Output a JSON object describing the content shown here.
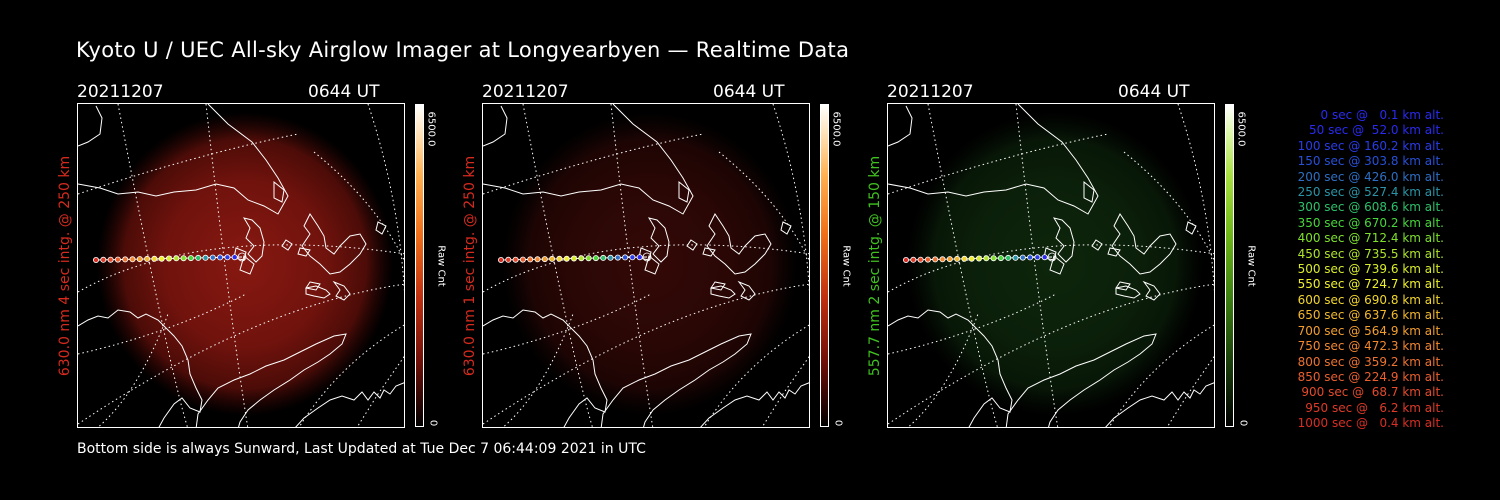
{
  "page": {
    "title": "Kyoto U / UEC All-sky Airglow Imager at Longyearbyen — Realtime Data",
    "footer": "Bottom side is always Sunward, Last Updated at Tue Dec  7 06:44:09 2021 in UTC"
  },
  "panels": [
    {
      "date": "20211207",
      "time": "0644 UT",
      "ylabel": "630.0 nm 4 sec intg. @ 250 km",
      "cbar_max": "6500.0",
      "cbar_min": "0",
      "cbar_unit": "Raw Cnt",
      "color": "#d62a1e"
    },
    {
      "date": "20211207",
      "time": "0644 UT",
      "ylabel": "630.0 nm 1 sec intg. @ 250 km",
      "cbar_max": "6500.0",
      "cbar_min": "0",
      "cbar_unit": "Raw Cnt",
      "color": "#d62a1e"
    },
    {
      "date": "20211207",
      "time": "0644 UT",
      "ylabel": "557.7 nm 2 sec intg. @ 150 km",
      "cbar_max": "6500.0",
      "cbar_min": "0",
      "cbar_unit": "Raw Cnt",
      "color": "#3fc21f"
    }
  ],
  "legend": [
    {
      "text": "0 sec @   0.1 km alt.",
      "color": "#2a2af0"
    },
    {
      "text": "50 sec @  52.0 km alt.",
      "color": "#2a2af0"
    },
    {
      "text": "100 sec @ 160.2 km alt.",
      "color": "#2a3ce8"
    },
    {
      "text": "150 sec @ 303.8 km alt.",
      "color": "#2850d8"
    },
    {
      "text": "200 sec @ 426.0 km alt.",
      "color": "#2d6fc4"
    },
    {
      "text": "250 sec @ 527.4 km alt.",
      "color": "#2a94a6"
    },
    {
      "text": "300 sec @ 608.6 km alt.",
      "color": "#2cc06b"
    },
    {
      "text": "350 sec @ 670.2 km alt.",
      "color": "#47d63a"
    },
    {
      "text": "400 sec @ 712.4 km alt.",
      "color": "#7ee02b"
    },
    {
      "text": "450 sec @ 735.5 km alt.",
      "color": "#aee52a"
    },
    {
      "text": "500 sec @ 739.6 km alt.",
      "color": "#d8ec2a"
    },
    {
      "text": "550 sec @ 724.7 km alt.",
      "color": "#eef02c"
    },
    {
      "text": "600 sec @ 690.8 km alt.",
      "color": "#f2d62c"
    },
    {
      "text": "650 sec @ 637.6 km alt.",
      "color": "#f2b82c"
    },
    {
      "text": "700 sec @ 564.9 km alt.",
      "color": "#f29e2e"
    },
    {
      "text": "750 sec @ 472.3 km alt.",
      "color": "#f28730"
    },
    {
      "text": "800 sec @ 359.2 km alt.",
      "color": "#ee7230"
    },
    {
      "text": "850 sec @ 224.9 km alt.",
      "color": "#ea5e2e"
    },
    {
      "text": "900 sec @  68.7 km alt.",
      "color": "#e44a2c"
    },
    {
      "text": "950 sec @   6.2 km alt.",
      "color": "#de3a28"
    },
    {
      "text": "1000 sec @   0.4 km alt.",
      "color": "#d82e24"
    }
  ]
}
